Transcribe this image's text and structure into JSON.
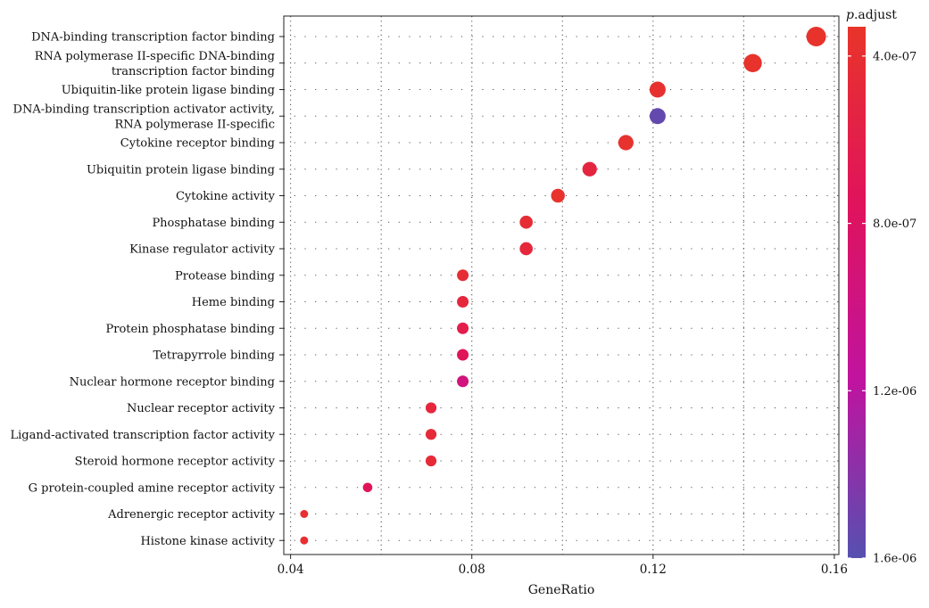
{
  "chart_data": {
    "type": "scatter",
    "title": "",
    "xlabel": "GeneRatio",
    "ylabel": "",
    "xlim": [
      0.0385,
      0.161
    ],
    "xticks": [
      0.04,
      0.08,
      0.12,
      0.16
    ],
    "xtick_labels": [
      "0.04",
      "0.08",
      "0.12",
      "0.16"
    ],
    "grid": true,
    "categories": [
      "DNA-binding transcription factor binding",
      "RNA polymerase II-specific DNA-binding\ntranscription factor binding",
      "Ubiquitin-like protein ligase binding",
      "DNA-binding transcription activator activity,\nRNA polymerase II-specific",
      "Cytokine receptor binding",
      "Ubiquitin protein ligase binding",
      "Cytokine activity",
      "Phosphatase binding",
      "Kinase regulator activity",
      "Protease binding",
      "Heme binding",
      "Protein phosphatase binding",
      "Tetrapyrrole binding",
      "Nuclear hormone receptor binding",
      "Nuclear receptor activity",
      "Ligand-activated transcription factor activity",
      "Steroid hormone receptor activity",
      "G protein-coupled amine receptor activity",
      "Adrenergic receptor activity",
      "Histone kinase activity"
    ],
    "series": [
      {
        "x": [
          0.156,
          0.142,
          0.121,
          0.121,
          0.114,
          0.106,
          0.099,
          0.092,
          0.092,
          0.078,
          0.078,
          0.078,
          0.078,
          0.078,
          0.071,
          0.071,
          0.071,
          0.057,
          0.043,
          0.043
        ],
        "p_adjust": [
          3.5e-07,
          3.5e-07,
          3.8e-07,
          1.55e-06,
          3.6e-07,
          5.2e-07,
          3.6e-07,
          4.2e-07,
          4.8e-07,
          4.2e-07,
          5e-07,
          6.2e-07,
          7.4e-07,
          9.6e-07,
          5e-07,
          4.6e-07,
          4.4e-07,
          7.4e-07,
          4e-07,
          4e-07
        ]
      }
    ],
    "color_legend": {
      "title_italic": "p",
      "title_rest": ".adjust",
      "range": [
        3.3e-07,
        1.6e-06
      ],
      "ticks": [
        4e-07,
        8e-07,
        1.2e-06,
        1.6e-06
      ],
      "tick_labels": [
        "4.0e-07",
        "8.0e-07",
        "1.2e-06",
        "1.6e-06"
      ],
      "colors": [
        "#e8342a",
        "#e0135c",
        "#c0139f",
        "#5650b0"
      ]
    }
  }
}
